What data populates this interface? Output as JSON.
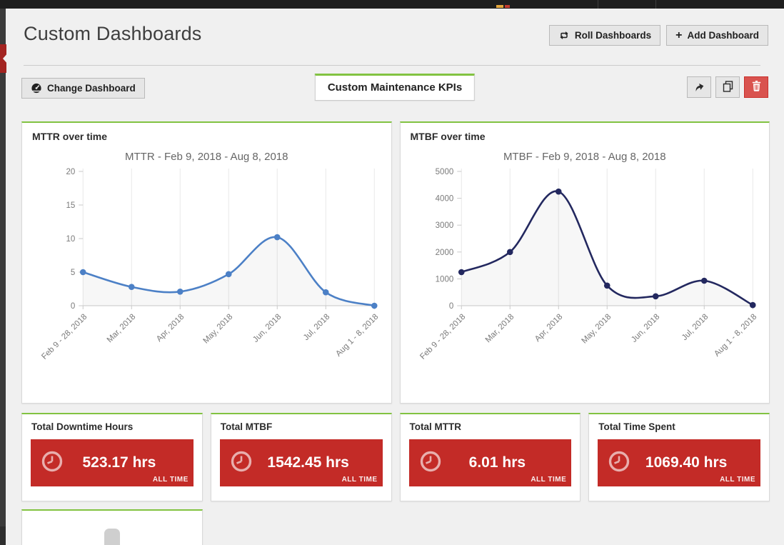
{
  "page_header": {
    "title": "Custom Dashboards",
    "roll_button": "Roll Dashboards",
    "add_button": "Add Dashboard",
    "add_plus": "+"
  },
  "toolbar": {
    "change_dashboard_button": "Change Dashboard",
    "dashboard_tab": "Custom Maintenance KPIs"
  },
  "chart_data": [
    {
      "type": "line",
      "card_title": "MTTR over time",
      "title": "MTTR - Feb 9, 2018 - Aug 8, 2018",
      "categories": [
        "Feb 9 - 28, 2018",
        "Mar, 2018",
        "Apr, 2018",
        "May, 2018",
        "Jun, 2018",
        "Jul, 2018",
        "Aug 1 - 8, 2018"
      ],
      "values": [
        5,
        2.8,
        2.1,
        4.7,
        10.2,
        2,
        0
      ],
      "ylim": [
        0,
        20
      ],
      "yticks": [
        0,
        5,
        10,
        15,
        20
      ],
      "line_color": "#4c80c6",
      "fill_color": "rgba(110,110,110,0.055)",
      "grid": "vertical",
      "legend": "none",
      "xlabel": "",
      "ylabel": ""
    },
    {
      "type": "line",
      "card_title": "MTBF over time",
      "title": "MTBF - Feb 9, 2018 - Aug 8, 2018",
      "categories": [
        "Feb 9 - 28, 2018",
        "Mar, 2018",
        "Apr, 2018",
        "May, 2018",
        "Jun, 2018",
        "Jul, 2018",
        "Aug 1 - 8, 2018"
      ],
      "values": [
        1250,
        2000,
        4250,
        750,
        350,
        930,
        25
      ],
      "ylim": [
        0,
        5000
      ],
      "yticks": [
        0,
        1000,
        2000,
        3000,
        4000,
        5000
      ],
      "line_color": "#23285f",
      "fill_color": "rgba(110,110,110,0.055)",
      "grid": "vertical",
      "legend": "none",
      "xlabel": "",
      "ylabel": ""
    }
  ],
  "kpis": [
    {
      "title": "Total Downtime Hours",
      "value": "523.17 hrs",
      "badge": "ALL TIME"
    },
    {
      "title": "Total MTBF",
      "value": "1542.45 hrs",
      "badge": "ALL TIME"
    },
    {
      "title": "Total MTTR",
      "value": "6.01 hrs",
      "badge": "ALL TIME"
    },
    {
      "title": "Total Time Spent",
      "value": "1069.40 hrs",
      "badge": "ALL TIME"
    }
  ],
  "icons": {
    "change_dashboard": "tachometer-icon",
    "roll": "repeat-icon",
    "add": "plus-icon",
    "share": "share-arrow-icon",
    "copy": "copy-icon",
    "delete": "trash-icon",
    "kpi": "clock-icon",
    "sidebar_toggle": "chevron-left-icon"
  },
  "colors": {
    "accent_green": "#82c341",
    "kpi_red": "#c32b27",
    "danger_red": "#d9534f",
    "mttr_line": "#4c80c6",
    "mtbf_line": "#23285f",
    "topbar": "#1e1e1e"
  }
}
